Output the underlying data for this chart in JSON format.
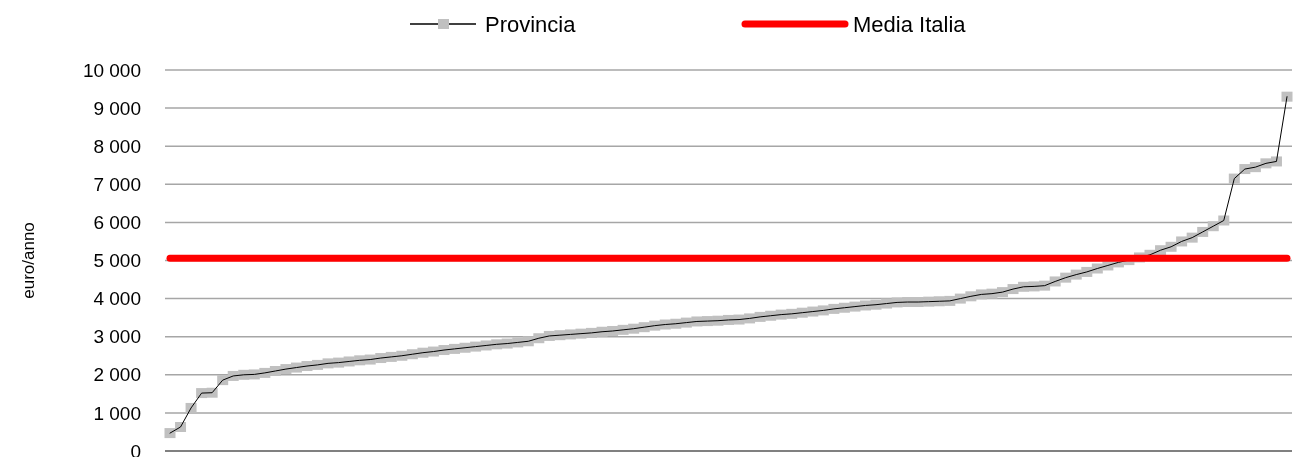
{
  "chart_data": {
    "type": "line",
    "ylabel": "euro/anno",
    "categories": [
      null,
      null,
      null,
      null,
      null,
      null,
      null,
      null,
      null,
      null,
      null,
      null,
      null,
      null,
      null,
      null,
      null,
      null,
      null,
      null,
      null,
      null,
      null,
      null,
      null,
      null,
      null,
      null,
      null,
      null,
      null,
      null,
      null,
      null,
      null,
      null,
      null,
      null,
      null,
      null,
      null,
      null,
      null,
      null,
      null,
      null,
      null,
      null,
      null,
      null,
      null,
      null,
      null,
      null,
      null,
      null,
      null,
      null,
      null,
      null,
      null,
      null,
      null,
      null,
      null,
      null,
      null,
      null,
      null,
      null,
      null,
      null,
      null,
      null,
      null,
      null,
      null,
      null,
      null,
      null,
      null,
      null,
      null,
      null,
      null,
      null,
      null,
      null,
      null,
      null,
      null,
      null,
      null,
      null,
      null,
      null,
      null,
      null,
      null,
      null,
      null,
      null,
      null,
      null,
      null,
      null,
      null
    ],
    "series": [
      {
        "name": "Provincia",
        "color": "#c0c0c0",
        "marker": "square",
        "values": [
          470,
          630,
          1130,
          1520,
          1530,
          1860,
          1970,
          2000,
          2010,
          2050,
          2100,
          2150,
          2190,
          2230,
          2260,
          2300,
          2320,
          2350,
          2380,
          2400,
          2440,
          2470,
          2500,
          2540,
          2580,
          2610,
          2650,
          2680,
          2710,
          2740,
          2770,
          2800,
          2820,
          2850,
          2880,
          2960,
          3020,
          3040,
          3060,
          3080,
          3100,
          3130,
          3150,
          3180,
          3210,
          3250,
          3290,
          3320,
          3340,
          3370,
          3400,
          3410,
          3420,
          3440,
          3450,
          3480,
          3520,
          3550,
          3580,
          3600,
          3630,
          3660,
          3690,
          3730,
          3760,
          3790,
          3820,
          3840,
          3870,
          3900,
          3910,
          3910,
          3920,
          3930,
          3940,
          4000,
          4060,
          4110,
          4130,
          4170,
          4250,
          4310,
          4320,
          4340,
          4450,
          4550,
          4630,
          4700,
          4790,
          4870,
          4950,
          5010,
          5080,
          5150,
          5270,
          5360,
          5500,
          5600,
          5750,
          5900,
          6050,
          7150,
          7400,
          7450,
          7550,
          7600,
          9300
        ]
      },
      {
        "name": "Media Italia",
        "color": "#ff0000",
        "marker": "none",
        "values": [
          5060,
          5060,
          5060,
          5060,
          5060,
          5060,
          5060,
          5060,
          5060,
          5060,
          5060,
          5060,
          5060,
          5060,
          5060,
          5060,
          5060,
          5060,
          5060,
          5060,
          5060,
          5060,
          5060,
          5060,
          5060,
          5060,
          5060,
          5060,
          5060,
          5060,
          5060,
          5060,
          5060,
          5060,
          5060,
          5060,
          5060,
          5060,
          5060,
          5060,
          5060,
          5060,
          5060,
          5060,
          5060,
          5060,
          5060,
          5060,
          5060,
          5060,
          5060,
          5060,
          5060,
          5060,
          5060,
          5060,
          5060,
          5060,
          5060,
          5060,
          5060,
          5060,
          5060,
          5060,
          5060,
          5060,
          5060,
          5060,
          5060,
          5060,
          5060,
          5060,
          5060,
          5060,
          5060,
          5060,
          5060,
          5060,
          5060,
          5060,
          5060,
          5060,
          5060,
          5060,
          5060,
          5060,
          5060,
          5060,
          5060,
          5060,
          5060,
          5060,
          5060,
          5060,
          5060,
          5060,
          5060,
          5060,
          5060,
          5060,
          5060,
          5060,
          5060,
          5060,
          5060,
          5060,
          5060
        ]
      }
    ],
    "ylim": [
      0,
      10000
    ],
    "yticks": [
      0,
      {
        "value": 1000,
        "label": "1 000"
      },
      {
        "value": 2000,
        "label": "2 000"
      },
      {
        "value": 3000,
        "label": "3 000"
      },
      {
        "value": 4000,
        "label": "4 000"
      },
      {
        "value": 5000,
        "label": "5 000"
      },
      {
        "value": 6000,
        "label": "6 000"
      },
      {
        "value": 7000,
        "label": "7 000"
      },
      {
        "value": 8000,
        "label": "8 000"
      },
      {
        "value": 9000,
        "label": "9 000"
      },
      {
        "value": 10000,
        "label": "10 000"
      }
    ],
    "grid": "y",
    "legend": "top",
    "tick_labels": "y"
  }
}
